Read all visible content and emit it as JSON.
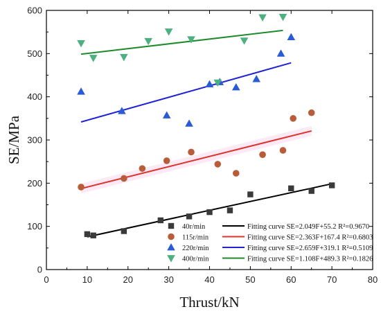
{
  "chart_data": {
    "type": "scatter",
    "xlabel": "Thrust/kN",
    "ylabel": "SE/MPa",
    "xlim": [
      0,
      80
    ],
    "ylim": [
      0,
      600
    ],
    "xticks": [
      0,
      10,
      20,
      30,
      40,
      50,
      60,
      70,
      80
    ],
    "yticks": [
      0,
      100,
      200,
      300,
      400,
      500,
      600
    ],
    "grid": false,
    "legend_position": "bottom-right",
    "series": [
      {
        "name": "40r/min",
        "marker": "square",
        "color": "#3a3a3a",
        "fit_color": "#000000",
        "fit_label": "Fitting curve SE=2.049F+55.2  R²=0.9670",
        "fit_x": [
          10,
          70
        ],
        "fit_y": [
          75.7,
          198.6
        ],
        "points": [
          [
            10,
            82
          ],
          [
            11.5,
            79
          ],
          [
            19,
            89
          ],
          [
            28,
            114
          ],
          [
            35,
            123
          ],
          [
            40,
            133
          ],
          [
            45,
            137
          ],
          [
            50,
            174
          ],
          [
            60,
            188
          ],
          [
            65,
            182
          ],
          [
            70,
            195
          ]
        ]
      },
      {
        "name": "115r/min",
        "marker": "circle",
        "color": "#b85c3a",
        "fit_color": "#e0302a",
        "fit_label": "Fitting curve SE=2.363F+167.4  R²=0.6803",
        "fit_x": [
          8.5,
          65
        ],
        "fit_y": [
          187.5,
          321.0
        ],
        "points": [
          [
            8.5,
            191
          ],
          [
            19,
            211
          ],
          [
            23.5,
            234
          ],
          [
            29.5,
            252
          ],
          [
            35.5,
            272
          ],
          [
            42,
            244
          ],
          [
            46.5,
            223
          ],
          [
            53,
            266
          ],
          [
            58,
            276
          ],
          [
            60.5,
            350
          ],
          [
            65,
            363
          ]
        ]
      },
      {
        "name": "220r/min",
        "marker": "triangle-up",
        "color": "#2a5bd7",
        "fit_color": "#1f22d6",
        "fit_label": "Fitting curve SE=2.659F+319.1  R²=0.5109",
        "fit_x": [
          8.5,
          60
        ],
        "fit_y": [
          341.7,
          478.6
        ],
        "points": [
          [
            8.5,
            412
          ],
          [
            18.5,
            367
          ],
          [
            29.5,
            357
          ],
          [
            35,
            338
          ],
          [
            40,
            429
          ],
          [
            42.5,
            434
          ],
          [
            46.5,
            422
          ],
          [
            51.5,
            441
          ],
          [
            57.5,
            500
          ],
          [
            60,
            538
          ]
        ]
      },
      {
        "name": "400r/min",
        "marker": "triangle-down",
        "color": "#4cb07f",
        "fit_color": "#1f8a2a",
        "fit_label": "Fitting curve SE=1.108F+489.3  R²=0.1826",
        "fit_x": [
          8.5,
          58
        ],
        "fit_y": [
          498.7,
          553.6
        ],
        "points": [
          [
            8.5,
            524
          ],
          [
            11.5,
            490
          ],
          [
            19,
            492
          ],
          [
            25,
            529
          ],
          [
            30,
            551
          ],
          [
            35.5,
            533
          ],
          [
            42,
            433
          ],
          [
            48.5,
            530
          ],
          [
            53,
            584
          ],
          [
            58,
            585
          ]
        ]
      }
    ]
  }
}
